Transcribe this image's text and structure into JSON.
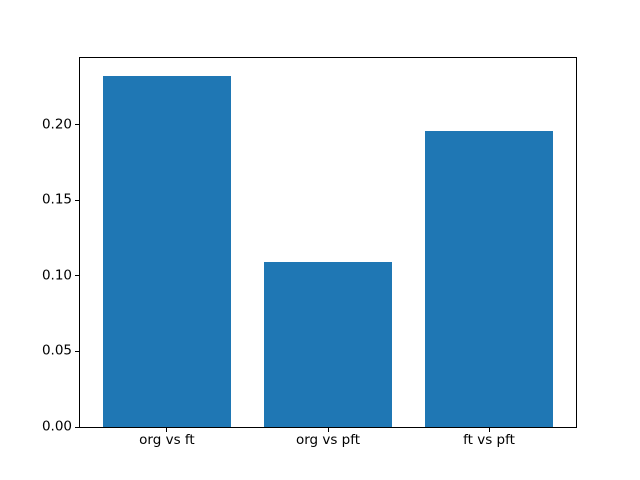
{
  "chart_data": {
    "type": "bar",
    "title": "",
    "xlabel": "",
    "ylabel": "",
    "categories": [
      "org vs ft",
      "org vs pft",
      "ft vs pft"
    ],
    "values": [
      0.232,
      0.109,
      0.196
    ],
    "x": [
      0,
      1,
      2
    ],
    "bar_width": 0.8,
    "xlim": [
      -0.54,
      2.54
    ],
    "ylim": [
      0,
      0.244
    ],
    "yticks": [
      0,
      0.05,
      0.1,
      0.15,
      0.2
    ],
    "ytick_labels": [
      "0.00",
      "0.05",
      "0.10",
      "0.15",
      "0.20"
    ],
    "grid": false,
    "legend": "none",
    "bar_color": "#1f77b4",
    "spine_color": "#000000",
    "background_color": "#ffffff"
  }
}
